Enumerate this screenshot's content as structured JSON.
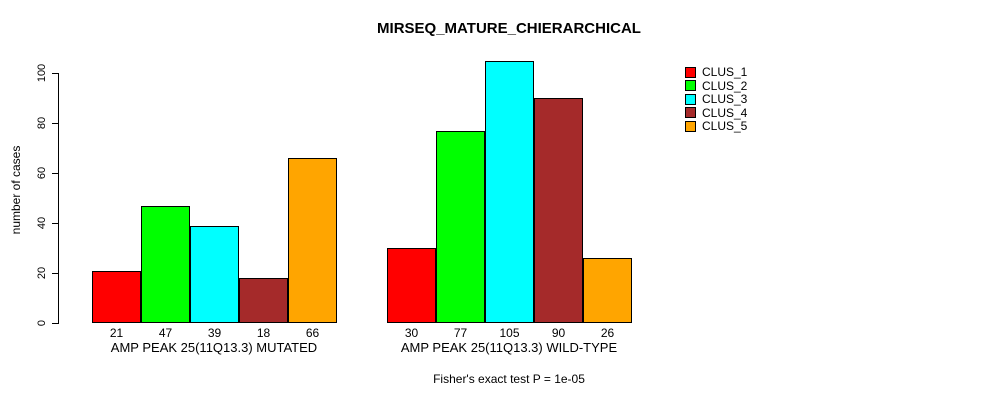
{
  "chart_data": {
    "type": "bar",
    "title": "MIRSEQ_MATURE_CHIERARCHICAL",
    "ylabel": "number of cases",
    "xlabel": "",
    "ylim": [
      0,
      105
    ],
    "yticks": [
      0,
      20,
      40,
      60,
      80,
      100
    ],
    "grid": false,
    "legend_position": "right",
    "categories": [
      "AMP PEAK 25(11Q13.3) MUTATED",
      "AMP PEAK 25(11Q13.3) WILD-TYPE"
    ],
    "series": [
      {
        "name": "CLUS_1",
        "color": "#FF0000",
        "values": [
          21,
          30
        ]
      },
      {
        "name": "CLUS_2",
        "color": "#00FF00",
        "values": [
          47,
          77
        ]
      },
      {
        "name": "CLUS_3",
        "color": "#00FFFF",
        "values": [
          39,
          105
        ]
      },
      {
        "name": "CLUS_4",
        "color": "#A52A2A",
        "values": [
          18,
          90
        ]
      },
      {
        "name": "CLUS_5",
        "color": "#FFA500",
        "values": [
          66,
          26
        ]
      }
    ],
    "bar_value_labels": [
      [
        21,
        47,
        39,
        18,
        66
      ],
      [
        30,
        77,
        105,
        90,
        26
      ]
    ],
    "annotation": "Fisher's exact test P = 1e-05"
  }
}
